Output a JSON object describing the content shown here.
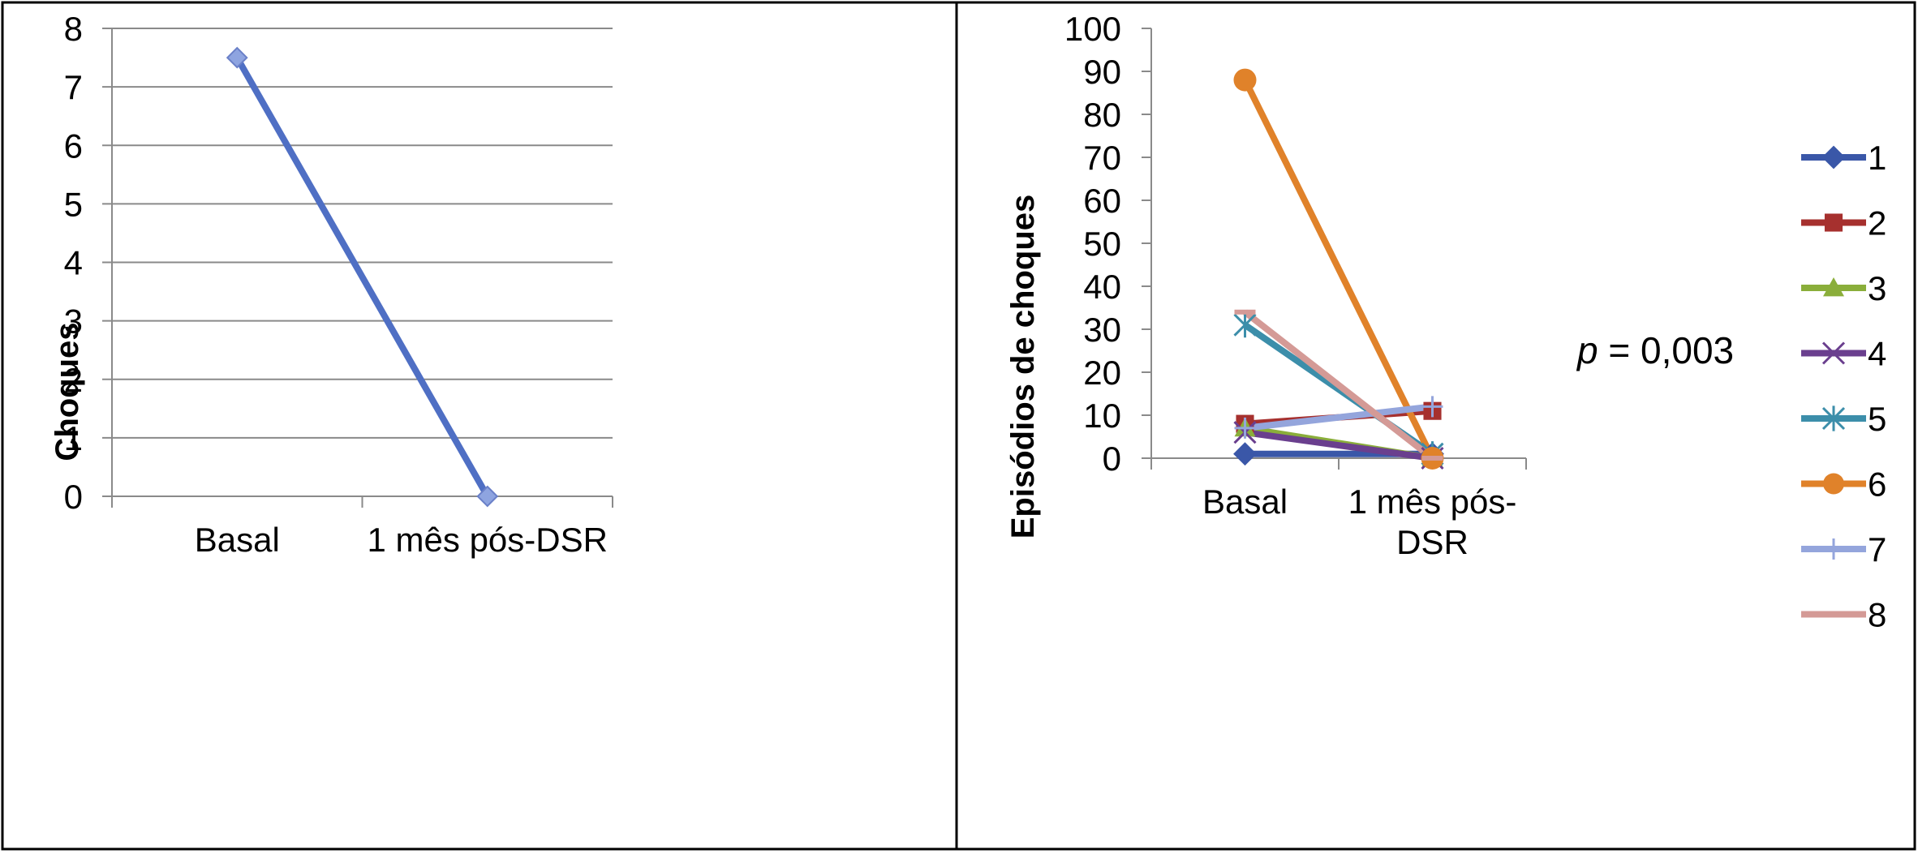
{
  "chart_data": [
    {
      "type": "line",
      "categories": [
        "Basal",
        "1 mês pós-DSR"
      ],
      "series": [
        {
          "values": [
            7.5,
            0
          ],
          "color": "#4F6FC4",
          "marker": "diamond"
        }
      ],
      "ylabel": "Choques",
      "ylim": [
        0,
        8
      ],
      "yticks": [
        0,
        1,
        2,
        3,
        4,
        5,
        6,
        7,
        8
      ],
      "grid": true,
      "legend": "none"
    },
    {
      "type": "line",
      "categories": [
        "Basal",
        "1 mês pós-DSR"
      ],
      "category_lines": [
        [
          "Basal"
        ],
        [
          "1 mês pós-",
          "DSR"
        ]
      ],
      "series": [
        {
          "name": "1",
          "values": [
            1,
            1
          ],
          "color": "#3A57A8",
          "marker": "diamond"
        },
        {
          "name": "2",
          "values": [
            8,
            11
          ],
          "color": "#A6302E",
          "marker": "square"
        },
        {
          "name": "3",
          "values": [
            7,
            0
          ],
          "color": "#8AAE3A",
          "marker": "triangle"
        },
        {
          "name": "4",
          "values": [
            6,
            0
          ],
          "color": "#6A3F8E",
          "marker": "x"
        },
        {
          "name": "5",
          "values": [
            31,
            1
          ],
          "color": "#3C8EAA",
          "marker": "star"
        },
        {
          "name": "6",
          "values": [
            88,
            0
          ],
          "color": "#E0822A",
          "marker": "circle"
        },
        {
          "name": "7",
          "values": [
            7,
            12
          ],
          "color": "#94A5DC",
          "marker": "plus"
        },
        {
          "name": "8",
          "values": [
            34,
            0
          ],
          "color": "#D49A96",
          "marker": "dash"
        }
      ],
      "ylabel": "Episódios de choques",
      "ylim": [
        0,
        100
      ],
      "yticks": [
        0,
        10,
        20,
        30,
        40,
        50,
        60,
        70,
        80,
        90,
        100
      ],
      "grid": false,
      "legend": "right",
      "annotation": {
        "italic": "p",
        "rest": " = 0,003"
      }
    }
  ]
}
